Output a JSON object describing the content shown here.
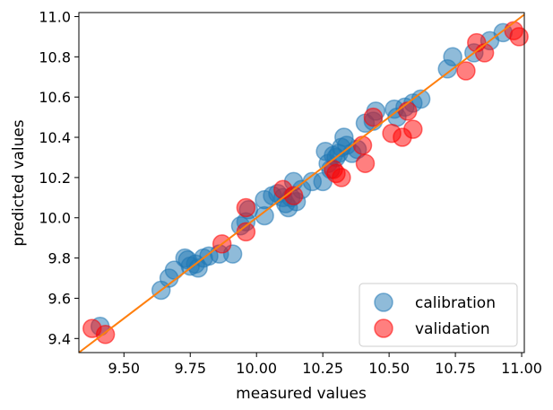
{
  "chart_data": {
    "type": "scatter",
    "title": "",
    "xlabel": "measured values",
    "ylabel": "predicted values",
    "xlim": [
      9.33,
      11.01
    ],
    "ylim": [
      9.33,
      11.02
    ],
    "xticks": [
      9.5,
      9.75,
      10.0,
      10.25,
      10.5,
      10.75,
      11.0
    ],
    "xtick_labels": [
      "9.50",
      "9.75",
      "10.00",
      "10.25",
      "10.50",
      "10.75",
      "11.00"
    ],
    "yticks": [
      9.4,
      9.6,
      9.8,
      10.0,
      10.2,
      10.4,
      10.6,
      10.8,
      11.0
    ],
    "ytick_labels": [
      "9.4",
      "9.6",
      "9.8",
      "10.0",
      "10.2",
      "10.4",
      "10.6",
      "10.8",
      "11.0"
    ],
    "grid": false,
    "legend_position": "bottom-right",
    "reference_line": {
      "x": [
        9.33,
        11.01
      ],
      "y": [
        9.33,
        11.01
      ],
      "color": "#ff7f0e"
    },
    "series": [
      {
        "name": "calibration",
        "color": "#1f77b4",
        "points": [
          [
            9.41,
            9.46
          ],
          [
            9.64,
            9.64
          ],
          [
            9.67,
            9.7
          ],
          [
            9.69,
            9.74
          ],
          [
            9.73,
            9.8
          ],
          [
            9.74,
            9.79
          ],
          [
            9.75,
            9.76
          ],
          [
            9.77,
            9.77
          ],
          [
            9.78,
            9.75
          ],
          [
            9.8,
            9.8
          ],
          [
            9.82,
            9.81
          ],
          [
            9.86,
            9.82
          ],
          [
            9.91,
            9.82
          ],
          [
            9.94,
            9.96
          ],
          [
            9.96,
            9.98
          ],
          [
            9.97,
            10.04
          ],
          [
            10.03,
            10.01
          ],
          [
            10.03,
            10.09
          ],
          [
            10.06,
            10.11
          ],
          [
            10.08,
            10.12
          ],
          [
            10.1,
            10.1
          ],
          [
            10.11,
            10.07
          ],
          [
            10.12,
            10.05
          ],
          [
            10.13,
            10.1
          ],
          [
            10.14,
            10.18
          ],
          [
            10.15,
            10.08
          ],
          [
            10.17,
            10.14
          ],
          [
            10.21,
            10.18
          ],
          [
            10.25,
            10.18
          ],
          [
            10.26,
            10.33
          ],
          [
            10.27,
            10.27
          ],
          [
            10.28,
            10.24
          ],
          [
            10.29,
            10.31
          ],
          [
            10.3,
            10.3
          ],
          [
            10.31,
            10.32
          ],
          [
            10.32,
            10.35
          ],
          [
            10.33,
            10.4
          ],
          [
            10.34,
            10.36
          ],
          [
            10.36,
            10.32
          ],
          [
            10.38,
            10.34
          ],
          [
            10.41,
            10.47
          ],
          [
            10.44,
            10.48
          ],
          [
            10.45,
            10.53
          ],
          [
            10.52,
            10.54
          ],
          [
            10.53,
            10.5
          ],
          [
            10.56,
            10.55
          ],
          [
            10.59,
            10.57
          ],
          [
            10.62,
            10.59
          ],
          [
            10.72,
            10.74
          ],
          [
            10.74,
            10.8
          ],
          [
            10.82,
            10.82
          ],
          [
            10.88,
            10.88
          ],
          [
            10.93,
            10.92
          ]
        ]
      },
      {
        "name": "validation",
        "color": "#ff0000",
        "points": [
          [
            9.38,
            9.45
          ],
          [
            9.43,
            9.42
          ],
          [
            9.87,
            9.87
          ],
          [
            9.96,
            9.93
          ],
          [
            9.96,
            10.05
          ],
          [
            10.1,
            10.14
          ],
          [
            10.14,
            10.11
          ],
          [
            10.29,
            10.24
          ],
          [
            10.3,
            10.22
          ],
          [
            10.32,
            10.2
          ],
          [
            10.4,
            10.36
          ],
          [
            10.41,
            10.27
          ],
          [
            10.44,
            10.5
          ],
          [
            10.51,
            10.42
          ],
          [
            10.55,
            10.4
          ],
          [
            10.57,
            10.53
          ],
          [
            10.59,
            10.44
          ],
          [
            10.79,
            10.73
          ],
          [
            10.83,
            10.87
          ],
          [
            10.86,
            10.82
          ],
          [
            10.97,
            10.93
          ],
          [
            10.99,
            10.9
          ]
        ]
      }
    ]
  }
}
